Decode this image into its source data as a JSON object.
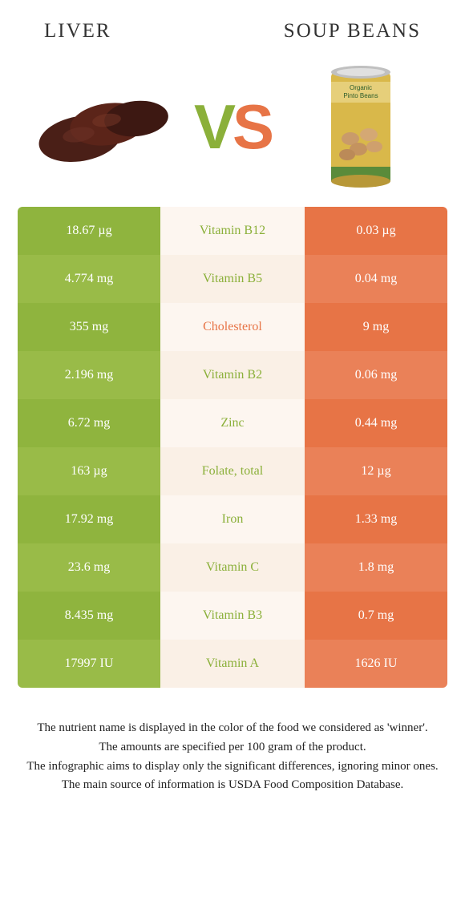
{
  "colors": {
    "liver_a": "#8fb43e",
    "liver_b": "#99bb48",
    "beans_a": "#e77446",
    "beans_b": "#ea8158",
    "mid_a": "#fdf6f0",
    "mid_b": "#faf0e6",
    "winner_liver": "#8bb03a",
    "winner_beans": "#e77446"
  },
  "titles": {
    "left": "LIVER",
    "right": "SOUP BEANS"
  },
  "vs": {
    "v": "V",
    "s": "S"
  },
  "rows": [
    {
      "left": "18.67 µg",
      "label": "Vitamin B12",
      "right": "0.03 µg",
      "winner": "liver"
    },
    {
      "left": "4.774 mg",
      "label": "Vitamin B5",
      "right": "0.04 mg",
      "winner": "liver"
    },
    {
      "left": "355 mg",
      "label": "Cholesterol",
      "right": "9 mg",
      "winner": "beans"
    },
    {
      "left": "2.196 mg",
      "label": "Vitamin B2",
      "right": "0.06 mg",
      "winner": "liver"
    },
    {
      "left": "6.72 mg",
      "label": "Zinc",
      "right": "0.44 mg",
      "winner": "liver"
    },
    {
      "left": "163 µg",
      "label": "Folate, total",
      "right": "12 µg",
      "winner": "liver"
    },
    {
      "left": "17.92 mg",
      "label": "Iron",
      "right": "1.33 mg",
      "winner": "liver"
    },
    {
      "left": "23.6 mg",
      "label": "Vitamin C",
      "right": "1.8 mg",
      "winner": "liver"
    },
    {
      "left": "8.435 mg",
      "label": "Vitamin B3",
      "right": "0.7 mg",
      "winner": "liver"
    },
    {
      "left": "17997 IU",
      "label": "Vitamin A",
      "right": "1626 IU",
      "winner": "liver"
    }
  ],
  "footnotes": [
    "The nutrient name is displayed in the color of the food we considered as 'winner'.",
    "The amounts are specified per 100 gram of the product.",
    "The infographic aims to display only the significant differences, ignoring minor ones.",
    "The main source of information is USDA Food Composition Database."
  ]
}
